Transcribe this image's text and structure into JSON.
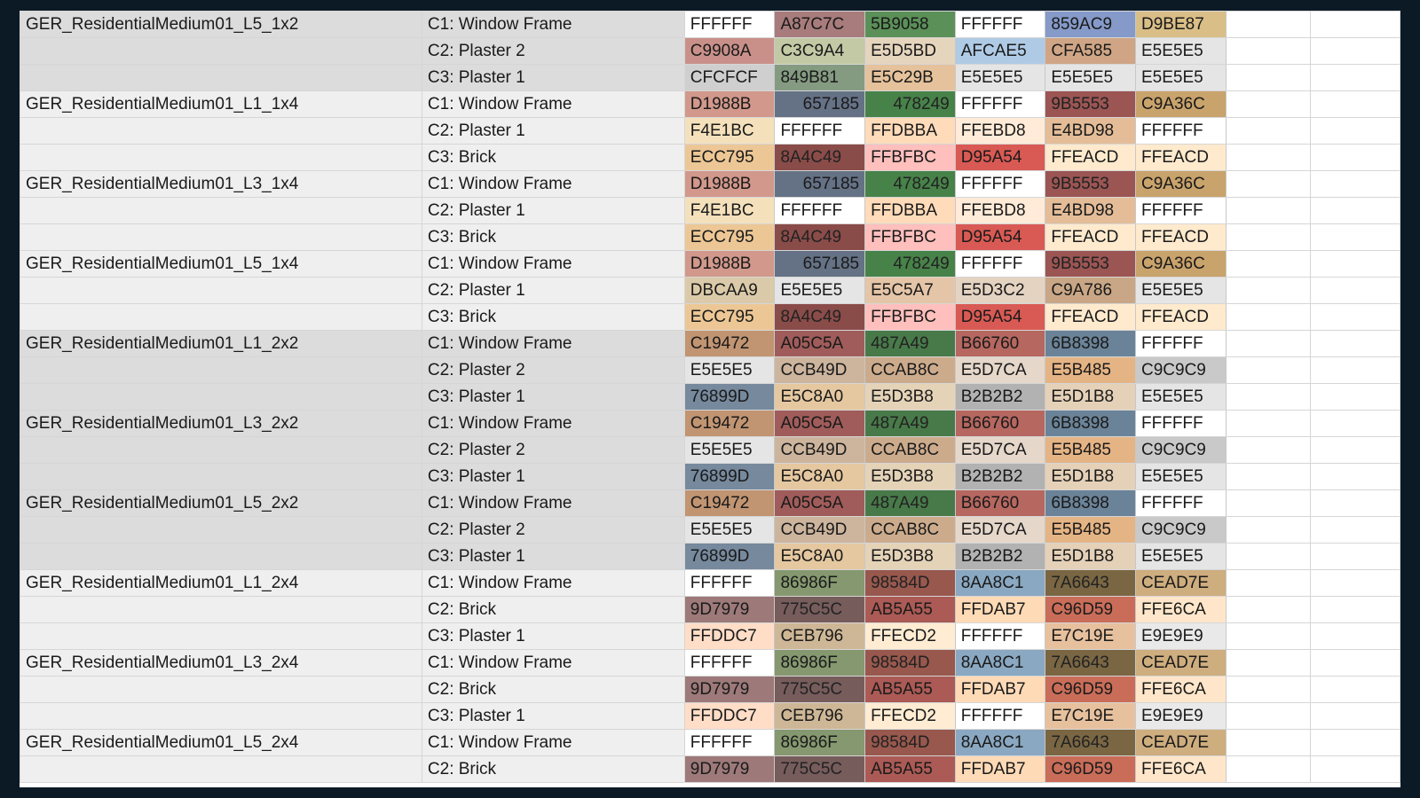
{
  "colors": {
    "window_bg": "#0c1a26",
    "band_gray": "#dcdcdc",
    "band_light": "#efefef",
    "grid_line": "#d6d6d6"
  },
  "rows": [
    {
      "model": "GER_ResidentialMedium01_L5_1x2",
      "part": "C1: Window Frame",
      "band": "gray",
      "swatches": [
        {
          "hex": "FFFFFF",
          "bg": "#FFFFFF"
        },
        {
          "hex": "A87C7C",
          "bg": "#A87C7C"
        },
        {
          "hex": "5B9058",
          "bg": "#5B9058"
        },
        {
          "hex": "FFFFFF",
          "bg": "#FFFFFF"
        },
        {
          "hex": "859AC9",
          "bg": "#859AC9"
        },
        {
          "hex": "D9BE87",
          "bg": "#D9BE87"
        }
      ]
    },
    {
      "model": "",
      "part": "C2: Plaster 2",
      "band": "gray",
      "swatches": [
        {
          "hex": "C9908A",
          "bg": "#C9908A"
        },
        {
          "hex": "C3C9A4",
          "bg": "#C3C9A4"
        },
        {
          "hex": "E5D5BD",
          "bg": "#E5D5BD"
        },
        {
          "hex": "AFCAE5",
          "bg": "#AFCAE5"
        },
        {
          "hex": "CFA585",
          "bg": "#CFA585"
        },
        {
          "hex": "E5E5E5",
          "bg": "#E5E5E5"
        }
      ]
    },
    {
      "model": "",
      "part": "C3: Plaster 1",
      "band": "gray",
      "swatches": [
        {
          "hex": "CFCFCF",
          "bg": "#CFCFCF"
        },
        {
          "hex": "849B81",
          "bg": "#849B81"
        },
        {
          "hex": "E5C29B",
          "bg": "#E5C29B"
        },
        {
          "hex": "E5E5E5",
          "bg": "#E5E5E5"
        },
        {
          "hex": "E5E5E5",
          "bg": "#E5E5E5"
        },
        {
          "hex": "E5E5E5",
          "bg": "#E5E5E5"
        }
      ]
    },
    {
      "model": "GER_ResidentialMedium01_L1_1x4",
      "part": "C1: Window Frame",
      "band": "light",
      "swatches": [
        {
          "hex": "D1988B",
          "bg": "#D1988B"
        },
        {
          "hex": "657185",
          "bg": "#657185",
          "right": true
        },
        {
          "hex": "478249",
          "bg": "#478249",
          "right": true
        },
        {
          "hex": "FFFFFF",
          "bg": "#FFFFFF"
        },
        {
          "hex": "9B5553",
          "bg": "#9B5553"
        },
        {
          "hex": "C9A36C",
          "bg": "#C9A36C"
        }
      ]
    },
    {
      "model": "",
      "part": "C2: Plaster 1",
      "band": "light",
      "swatches": [
        {
          "hex": "F4E1BC",
          "bg": "#F4E1BC"
        },
        {
          "hex": "FFFFFF",
          "bg": "#FFFFFF"
        },
        {
          "hex": "FFDBBA",
          "bg": "#FFDBBA"
        },
        {
          "hex": "FFEBD8",
          "bg": "#FFEBD8"
        },
        {
          "hex": "E4BD98",
          "bg": "#E4BD98"
        },
        {
          "hex": "FFFFFF",
          "bg": "#FFFFFF"
        }
      ]
    },
    {
      "model": "",
      "part": "C3: Brick",
      "band": "light",
      "swatches": [
        {
          "hex": "ECC795",
          "bg": "#ECC795"
        },
        {
          "hex": "8A4C49",
          "bg": "#8A4C49"
        },
        {
          "hex": "FFBFBC",
          "bg": "#FFBFBC"
        },
        {
          "hex": "D95A54",
          "bg": "#D95A54"
        },
        {
          "hex": "FFEACD",
          "bg": "#FFEACD"
        },
        {
          "hex": "FFEACD",
          "bg": "#FFEACD"
        }
      ]
    },
    {
      "model": "GER_ResidentialMedium01_L3_1x4",
      "part": "C1: Window Frame",
      "band": "light",
      "swatches": [
        {
          "hex": "D1988B",
          "bg": "#D1988B"
        },
        {
          "hex": "657185",
          "bg": "#657185",
          "right": true
        },
        {
          "hex": "478249",
          "bg": "#478249",
          "right": true
        },
        {
          "hex": "FFFFFF",
          "bg": "#FFFFFF"
        },
        {
          "hex": "9B5553",
          "bg": "#9B5553"
        },
        {
          "hex": "C9A36C",
          "bg": "#C9A36C"
        }
      ]
    },
    {
      "model": "",
      "part": "C2: Plaster 1",
      "band": "light",
      "swatches": [
        {
          "hex": "F4E1BC",
          "bg": "#F4E1BC"
        },
        {
          "hex": "FFFFFF",
          "bg": "#FFFFFF"
        },
        {
          "hex": "FFDBBA",
          "bg": "#FFDBBA"
        },
        {
          "hex": "FFEBD8",
          "bg": "#FFEBD8"
        },
        {
          "hex": "E4BD98",
          "bg": "#E4BD98"
        },
        {
          "hex": "FFFFFF",
          "bg": "#FFFFFF"
        }
      ]
    },
    {
      "model": "",
      "part": "C3: Brick",
      "band": "light",
      "swatches": [
        {
          "hex": "ECC795",
          "bg": "#ECC795"
        },
        {
          "hex": "8A4C49",
          "bg": "#8A4C49"
        },
        {
          "hex": "FFBFBC",
          "bg": "#FFBFBC"
        },
        {
          "hex": "D95A54",
          "bg": "#D95A54"
        },
        {
          "hex": "FFEACD",
          "bg": "#FFEACD"
        },
        {
          "hex": "FFEACD",
          "bg": "#FFEACD"
        }
      ]
    },
    {
      "model": "GER_ResidentialMedium01_L5_1x4",
      "part": "C1: Window Frame",
      "band": "light",
      "swatches": [
        {
          "hex": "D1988B",
          "bg": "#D1988B"
        },
        {
          "hex": "657185",
          "bg": "#657185",
          "right": true
        },
        {
          "hex": "478249",
          "bg": "#478249",
          "right": true
        },
        {
          "hex": "FFFFFF",
          "bg": "#FFFFFF"
        },
        {
          "hex": "9B5553",
          "bg": "#9B5553"
        },
        {
          "hex": "C9A36C",
          "bg": "#C9A36C"
        }
      ]
    },
    {
      "model": "",
      "part": "C2: Plaster 1",
      "band": "light",
      "swatches": [
        {
          "hex": "DBCAA9",
          "bg": "#DBCAA9"
        },
        {
          "hex": "E5E5E5",
          "bg": "#E5E5E5"
        },
        {
          "hex": "E5C5A7",
          "bg": "#E5C5A7"
        },
        {
          "hex": "E5D3C2",
          "bg": "#E5D3C2"
        },
        {
          "hex": "C9A786",
          "bg": "#C9A786"
        },
        {
          "hex": "E5E5E5",
          "bg": "#E5E5E5"
        }
      ]
    },
    {
      "model": "",
      "part": "C3: Brick",
      "band": "light",
      "swatches": [
        {
          "hex": "ECC795",
          "bg": "#ECC795"
        },
        {
          "hex": "8A4C49",
          "bg": "#8A4C49"
        },
        {
          "hex": "FFBFBC",
          "bg": "#FFBFBC"
        },
        {
          "hex": "D95A54",
          "bg": "#D95A54"
        },
        {
          "hex": "FFEACD",
          "bg": "#FFEACD"
        },
        {
          "hex": "FFEACD",
          "bg": "#FFEACD"
        }
      ]
    },
    {
      "model": "GER_ResidentialMedium01_L1_2x2",
      "part": "C1: Window Frame",
      "band": "gray",
      "swatches": [
        {
          "hex": "C19472",
          "bg": "#C19472"
        },
        {
          "hex": "A05C5A",
          "bg": "#A05C5A"
        },
        {
          "hex": "487A49",
          "bg": "#487A49"
        },
        {
          "hex": "B66760",
          "bg": "#B66760"
        },
        {
          "hex": "6B8398",
          "bg": "#6B8398"
        },
        {
          "hex": "FFFFFF",
          "bg": "#FFFFFF"
        }
      ]
    },
    {
      "model": "",
      "part": "C2: Plaster 2",
      "band": "gray",
      "swatches": [
        {
          "hex": "E5E5E5",
          "bg": "#E5E5E5"
        },
        {
          "hex": "CCB49D",
          "bg": "#CCB49D"
        },
        {
          "hex": "CCAB8C",
          "bg": "#CCAB8C"
        },
        {
          "hex": "E5D7CA",
          "bg": "#E5D7CA"
        },
        {
          "hex": "E5B485",
          "bg": "#E5B485"
        },
        {
          "hex": "C9C9C9",
          "bg": "#C9C9C9"
        }
      ]
    },
    {
      "model": "",
      "part": "C3: Plaster 1",
      "band": "gray",
      "swatches": [
        {
          "hex": "76899D",
          "bg": "#76899D"
        },
        {
          "hex": "E5C8A0",
          "bg": "#E5C8A0"
        },
        {
          "hex": "E5D3B8",
          "bg": "#E5D3B8"
        },
        {
          "hex": "B2B2B2",
          "bg": "#B2B2B2"
        },
        {
          "hex": "E5D1B8",
          "bg": "#E5D1B8"
        },
        {
          "hex": "E5E5E5",
          "bg": "#E5E5E5"
        }
      ]
    },
    {
      "model": "GER_ResidentialMedium01_L3_2x2",
      "part": "C1: Window Frame",
      "band": "gray",
      "swatches": [
        {
          "hex": "C19472",
          "bg": "#C19472"
        },
        {
          "hex": "A05C5A",
          "bg": "#A05C5A"
        },
        {
          "hex": "487A49",
          "bg": "#487A49"
        },
        {
          "hex": "B66760",
          "bg": "#B66760"
        },
        {
          "hex": "6B8398",
          "bg": "#6B8398"
        },
        {
          "hex": "FFFFFF",
          "bg": "#FFFFFF"
        }
      ]
    },
    {
      "model": "",
      "part": "C2: Plaster 2",
      "band": "gray",
      "swatches": [
        {
          "hex": "E5E5E5",
          "bg": "#E5E5E5"
        },
        {
          "hex": "CCB49D",
          "bg": "#CCB49D"
        },
        {
          "hex": "CCAB8C",
          "bg": "#CCAB8C"
        },
        {
          "hex": "E5D7CA",
          "bg": "#E5D7CA"
        },
        {
          "hex": "E5B485",
          "bg": "#E5B485"
        },
        {
          "hex": "C9C9C9",
          "bg": "#C9C9C9"
        }
      ]
    },
    {
      "model": "",
      "part": "C3: Plaster 1",
      "band": "gray",
      "swatches": [
        {
          "hex": "76899D",
          "bg": "#76899D"
        },
        {
          "hex": "E5C8A0",
          "bg": "#E5C8A0"
        },
        {
          "hex": "E5D3B8",
          "bg": "#E5D3B8"
        },
        {
          "hex": "B2B2B2",
          "bg": "#B2B2B2"
        },
        {
          "hex": "E5D1B8",
          "bg": "#E5D1B8"
        },
        {
          "hex": "E5E5E5",
          "bg": "#E5E5E5"
        }
      ]
    },
    {
      "model": "GER_ResidentialMedium01_L5_2x2",
      "part": "C1: Window Frame",
      "band": "gray",
      "swatches": [
        {
          "hex": "C19472",
          "bg": "#C19472"
        },
        {
          "hex": "A05C5A",
          "bg": "#A05C5A"
        },
        {
          "hex": "487A49",
          "bg": "#487A49"
        },
        {
          "hex": "B66760",
          "bg": "#B66760"
        },
        {
          "hex": "6B8398",
          "bg": "#6B8398"
        },
        {
          "hex": "FFFFFF",
          "bg": "#FFFFFF"
        }
      ]
    },
    {
      "model": "",
      "part": "C2: Plaster 2",
      "band": "gray",
      "swatches": [
        {
          "hex": "E5E5E5",
          "bg": "#E5E5E5"
        },
        {
          "hex": "CCB49D",
          "bg": "#CCB49D"
        },
        {
          "hex": "CCAB8C",
          "bg": "#CCAB8C"
        },
        {
          "hex": "E5D7CA",
          "bg": "#E5D7CA"
        },
        {
          "hex": "E5B485",
          "bg": "#E5B485"
        },
        {
          "hex": "C9C9C9",
          "bg": "#C9C9C9"
        }
      ]
    },
    {
      "model": "",
      "part": "C3: Plaster 1",
      "band": "gray",
      "swatches": [
        {
          "hex": "76899D",
          "bg": "#76899D"
        },
        {
          "hex": "E5C8A0",
          "bg": "#E5C8A0"
        },
        {
          "hex": "E5D3B8",
          "bg": "#E5D3B8"
        },
        {
          "hex": "B2B2B2",
          "bg": "#B2B2B2"
        },
        {
          "hex": "E5D1B8",
          "bg": "#E5D1B8"
        },
        {
          "hex": "E5E5E5",
          "bg": "#E5E5E5"
        }
      ]
    },
    {
      "model": "GER_ResidentialMedium01_L1_2x4",
      "part": "C1: Window Frame",
      "band": "light",
      "swatches": [
        {
          "hex": "FFFFFF",
          "bg": "#FFFFFF"
        },
        {
          "hex": "86986F",
          "bg": "#86986F"
        },
        {
          "hex": "98584D",
          "bg": "#98584D"
        },
        {
          "hex": "8AA8C1",
          "bg": "#8AA8C1"
        },
        {
          "hex": "7A6643",
          "bg": "#7A6643"
        },
        {
          "hex": "CEAD7E",
          "bg": "#CEAD7E"
        }
      ]
    },
    {
      "model": "",
      "part": "C2: Brick",
      "band": "light",
      "swatches": [
        {
          "hex": "9D7979",
          "bg": "#9D7979"
        },
        {
          "hex": "775C5C",
          "bg": "#775C5C"
        },
        {
          "hex": "AB5A55",
          "bg": "#AB5A55"
        },
        {
          "hex": "FFDAB7",
          "bg": "#FFDAB7"
        },
        {
          "hex": "C96D59",
          "bg": "#C96D59"
        },
        {
          "hex": "FFE6CA",
          "bg": "#FFE6CA"
        }
      ]
    },
    {
      "model": "",
      "part": "C3: Plaster 1",
      "band": "light",
      "swatches": [
        {
          "hex": "FFDDC7",
          "bg": "#FFDDC7"
        },
        {
          "hex": "CEB796",
          "bg": "#CEB796"
        },
        {
          "hex": "FFECD2",
          "bg": "#FFECD2"
        },
        {
          "hex": "FFFFFF",
          "bg": "#FFFFFF"
        },
        {
          "hex": "E7C19E",
          "bg": "#E7C19E"
        },
        {
          "hex": "E9E9E9",
          "bg": "#E9E9E9"
        }
      ]
    },
    {
      "model": "GER_ResidentialMedium01_L3_2x4",
      "part": "C1: Window Frame",
      "band": "light",
      "swatches": [
        {
          "hex": "FFFFFF",
          "bg": "#FFFFFF"
        },
        {
          "hex": "86986F",
          "bg": "#86986F"
        },
        {
          "hex": "98584D",
          "bg": "#98584D"
        },
        {
          "hex": "8AA8C1",
          "bg": "#8AA8C1"
        },
        {
          "hex": "7A6643",
          "bg": "#7A6643"
        },
        {
          "hex": "CEAD7E",
          "bg": "#CEAD7E"
        }
      ]
    },
    {
      "model": "",
      "part": "C2: Brick",
      "band": "light",
      "swatches": [
        {
          "hex": "9D7979",
          "bg": "#9D7979"
        },
        {
          "hex": "775C5C",
          "bg": "#775C5C"
        },
        {
          "hex": "AB5A55",
          "bg": "#AB5A55"
        },
        {
          "hex": "FFDAB7",
          "bg": "#FFDAB7"
        },
        {
          "hex": "C96D59",
          "bg": "#C96D59"
        },
        {
          "hex": "FFE6CA",
          "bg": "#FFE6CA"
        }
      ]
    },
    {
      "model": "",
      "part": "C3: Plaster 1",
      "band": "light",
      "swatches": [
        {
          "hex": "FFDDC7",
          "bg": "#FFDDC7"
        },
        {
          "hex": "CEB796",
          "bg": "#CEB796"
        },
        {
          "hex": "FFECD2",
          "bg": "#FFECD2"
        },
        {
          "hex": "FFFFFF",
          "bg": "#FFFFFF"
        },
        {
          "hex": "E7C19E",
          "bg": "#E7C19E"
        },
        {
          "hex": "E9E9E9",
          "bg": "#E9E9E9"
        }
      ]
    },
    {
      "model": "GER_ResidentialMedium01_L5_2x4",
      "part": "C1: Window Frame",
      "band": "light",
      "swatches": [
        {
          "hex": "FFFFFF",
          "bg": "#FFFFFF"
        },
        {
          "hex": "86986F",
          "bg": "#86986F"
        },
        {
          "hex": "98584D",
          "bg": "#98584D"
        },
        {
          "hex": "8AA8C1",
          "bg": "#8AA8C1"
        },
        {
          "hex": "7A6643",
          "bg": "#7A6643"
        },
        {
          "hex": "CEAD7E",
          "bg": "#CEAD7E"
        }
      ]
    },
    {
      "model": "",
      "part": "C2: Brick",
      "band": "light",
      "swatches": [
        {
          "hex": "9D7979",
          "bg": "#9D7979"
        },
        {
          "hex": "775C5C",
          "bg": "#775C5C"
        },
        {
          "hex": "AB5A55",
          "bg": "#AB5A55"
        },
        {
          "hex": "FFDAB7",
          "bg": "#FFDAB7"
        },
        {
          "hex": "C96D59",
          "bg": "#C96D59"
        },
        {
          "hex": "FFE6CA",
          "bg": "#FFE6CA"
        }
      ]
    }
  ]
}
